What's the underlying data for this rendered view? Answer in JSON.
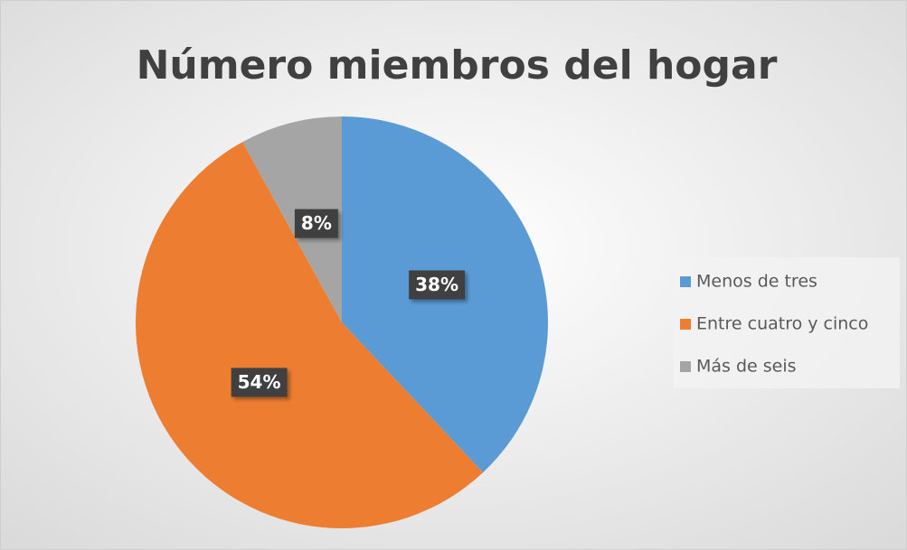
{
  "chart_data": {
    "type": "pie",
    "title": "Número miembros del hogar",
    "categories": [
      "Menos de tres",
      "Entre cuatro y cinco",
      "Más de seis"
    ],
    "values": [
      38,
      54,
      8
    ],
    "value_labels": [
      "38%",
      "54%",
      "8%"
    ],
    "colors": [
      "#5b9bd5",
      "#ed7d31",
      "#a5a5a5"
    ],
    "legend": "right"
  }
}
